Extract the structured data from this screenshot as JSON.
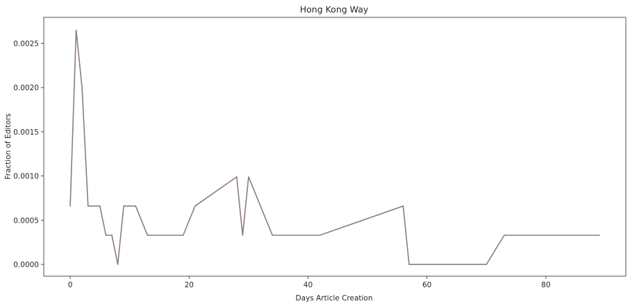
{
  "chart_data": {
    "type": "line",
    "title": "Hong Kong Way",
    "xlabel": "Days Article Creation",
    "ylabel": "Fraction of Editors",
    "xlim": [
      -4.45,
      93.45
    ],
    "ylim": [
      -0.000133,
      0.002794
    ],
    "x_ticks": [
      0,
      20,
      40,
      60,
      80
    ],
    "x_tick_labels": [
      "0",
      "20",
      "40",
      "60",
      "80"
    ],
    "y_ticks": [
      0.0,
      0.0005,
      0.001,
      0.0015,
      0.002,
      0.0025
    ],
    "y_tick_labels": [
      "0.0000",
      "0.0005",
      "0.0010",
      "0.0015",
      "0.0020",
      "0.0025"
    ],
    "grid": false,
    "legend": "none",
    "series": [
      {
        "color": "#8c7b83",
        "x": [
          0,
          1,
          2,
          3,
          4,
          5,
          6,
          7,
          8,
          9,
          10,
          11,
          13,
          19,
          21,
          28,
          29,
          30,
          34,
          42,
          56,
          57,
          70,
          73,
          89
        ],
        "y": [
          0.00066,
          0.00265,
          0.00199,
          0.00066,
          0.00066,
          0.00066,
          0.00033,
          0.00033,
          0.0,
          0.00066,
          0.00066,
          0.00066,
          0.00033,
          0.00033,
          0.00066,
          0.00099,
          0.00033,
          0.00099,
          0.00033,
          0.00033,
          0.00066,
          0.0,
          0.0,
          0.00033,
          0.00033
        ]
      }
    ]
  }
}
